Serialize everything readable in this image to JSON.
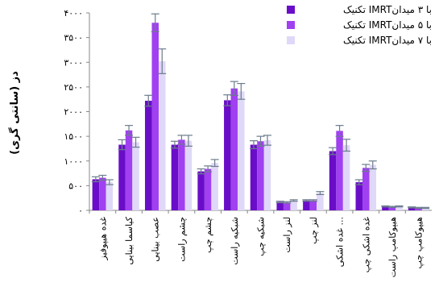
{
  "chart_data": {
    "type": "bar",
    "ylabel": "دز (سانتی گری)",
    "ylim": [
      0,
      4000
    ],
    "yticks": [
      "۰",
      "۵۰۰",
      "۱۰۰۰",
      "۱۵۰۰",
      "۲۰۰۰",
      "۲۵۰۰",
      "۳۰۰۰",
      "۳۵۰۰",
      "۴۰۰۰"
    ],
    "ytick_values": [
      0,
      500,
      1000,
      1500,
      2000,
      2500,
      3000,
      3500,
      4000
    ],
    "grid": false,
    "legend_position": "top-right",
    "categories": [
      "غده هیپوفیز",
      "کیاسما بینایی",
      "عصب بینایی",
      "چشم راست",
      "چشم چپ",
      "شبکیه راست",
      "شبکیه چپ",
      "لنز راست",
      "لنز چپ",
      "غده اشکی ...",
      "غده اشکی چپ",
      "هیپوکامپ راست",
      "هیپوکامپ چپ"
    ],
    "series": [
      {
        "name": "تکنیک IMRTبا ۳ میدان",
        "color": "#6a0dc8",
        "values": [
          630,
          1330,
          2220,
          1330,
          790,
          2230,
          1330,
          170,
          200,
          1200,
          570,
          80,
          60
        ],
        "errors": [
          50,
          100,
          110,
          70,
          50,
          110,
          80,
          15,
          15,
          70,
          50,
          10,
          10
        ]
      },
      {
        "name": "تکنیک IMRTبا ۵ میدان",
        "color": "#a040f0",
        "values": [
          660,
          1620,
          3800,
          1430,
          840,
          2470,
          1400,
          160,
          200,
          1610,
          860,
          70,
          50
        ],
        "errors": [
          50,
          100,
          180,
          90,
          60,
          140,
          100,
          15,
          15,
          110,
          70,
          10,
          10
        ]
      },
      {
        "name": "تکنیک IMRTبا ۷ میدان",
        "color": "#e0d8f8",
        "values": [
          570,
          1380,
          3020,
          1410,
          960,
          2410,
          1420,
          200,
          350,
          1320,
          920,
          80,
          50
        ],
        "errors": [
          50,
          100,
          250,
          110,
          70,
          160,
          100,
          15,
          30,
          120,
          80,
          10,
          10
        ]
      }
    ]
  }
}
